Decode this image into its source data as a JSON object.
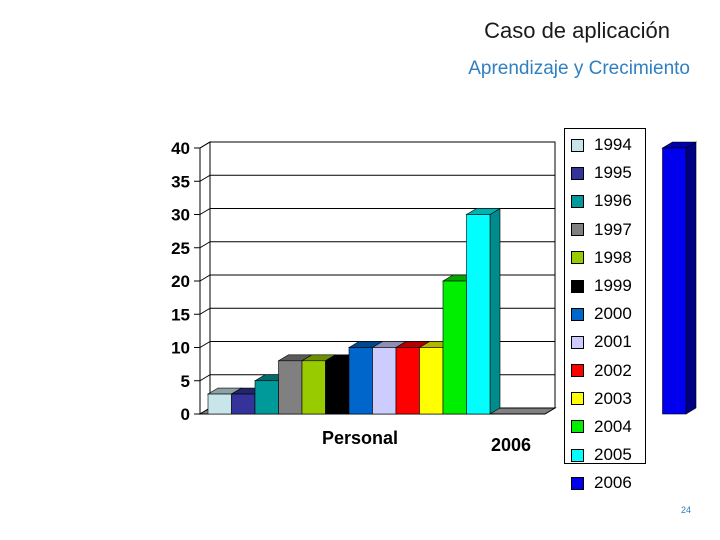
{
  "header": {
    "title": "Caso de aplicación",
    "subtitle": "Aprendizaje y Crecimiento"
  },
  "footer": {
    "page_number": "24"
  },
  "chart_data": {
    "type": "bar",
    "style": "3d-clustered-column",
    "categories": [
      "Personal",
      "2006"
    ],
    "ylim": [
      0,
      40
    ],
    "yticks": [
      0,
      5,
      10,
      15,
      20,
      25,
      30,
      35,
      40
    ],
    "grid": true,
    "legend_position": "right",
    "series": [
      {
        "name": "1994",
        "color": "#c8e6ea",
        "values": [
          3,
          0
        ]
      },
      {
        "name": "1995",
        "color": "#333399",
        "values": [
          3,
          0
        ]
      },
      {
        "name": "1996",
        "color": "#009a9a",
        "values": [
          5,
          0
        ]
      },
      {
        "name": "1997",
        "color": "#808080",
        "values": [
          8,
          0
        ]
      },
      {
        "name": "1998",
        "color": "#99cc00",
        "values": [
          8,
          0
        ]
      },
      {
        "name": "1999",
        "color": "#000000",
        "values": [
          8,
          0
        ]
      },
      {
        "name": "2000",
        "color": "#0066cc",
        "values": [
          10,
          0
        ]
      },
      {
        "name": "2001",
        "color": "#ccccff",
        "values": [
          10,
          0
        ]
      },
      {
        "name": "2002",
        "color": "#ff0000",
        "values": [
          10,
          0
        ]
      },
      {
        "name": "2003",
        "color": "#ffff00",
        "values": [
          10,
          0
        ]
      },
      {
        "name": "2004",
        "color": "#00ee00",
        "values": [
          20,
          0
        ]
      },
      {
        "name": "2005",
        "color": "#00ffff",
        "values": [
          30,
          0
        ]
      },
      {
        "name": "2006",
        "color": "#0000ee",
        "values": [
          0,
          40
        ]
      }
    ]
  }
}
